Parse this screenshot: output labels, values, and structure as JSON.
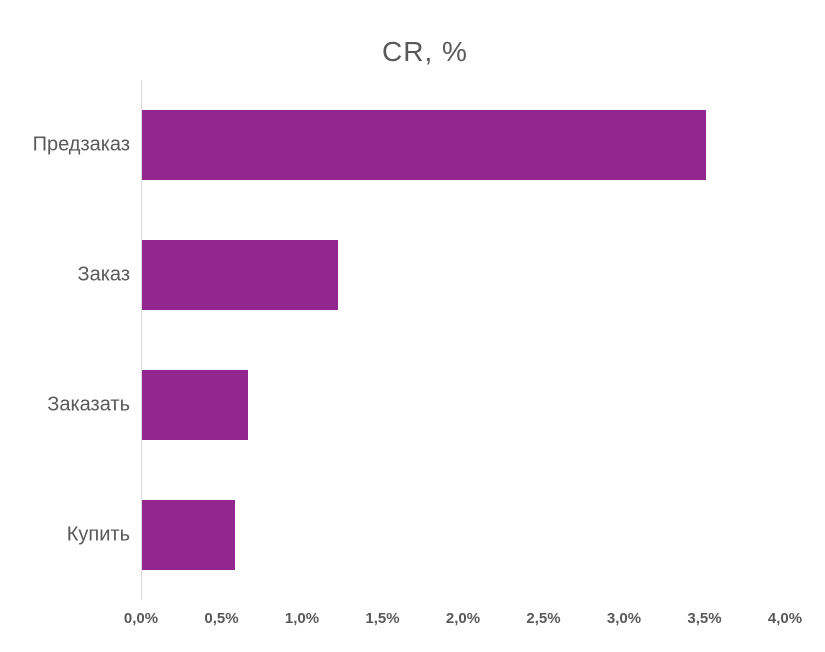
{
  "chart": {
    "title": "CR, %"
  },
  "chart_data": {
    "type": "bar",
    "orientation": "horizontal",
    "title": "CR, %",
    "xlabel": "",
    "ylabel": "",
    "categories": [
      "Предзаказ",
      "Заказ",
      "Заказать",
      "Купить"
    ],
    "values": [
      3.5,
      1.22,
      0.66,
      0.58
    ],
    "xlim": [
      0,
      4.0
    ],
    "xtick_step": 0.5,
    "xtick_labels": [
      "0,0%",
      "0,5%",
      "1,0%",
      "1,5%",
      "2,0%",
      "2,5%",
      "3,0%",
      "3,5%",
      "4,0%"
    ],
    "grid": false,
    "legend": "none",
    "value_format": "percent-comma-decimal"
  },
  "colors": {
    "bar": "#92278F",
    "axis_line": "#d9d9d9",
    "text": "#595959",
    "background": "#ffffff"
  }
}
